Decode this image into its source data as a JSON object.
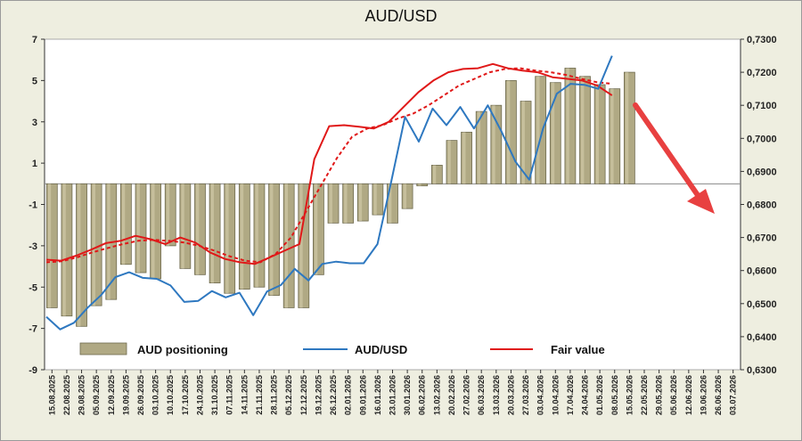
{
  "chart_data": {
    "type": "bar",
    "title": "AUD/USD",
    "y_left": {
      "min": -9,
      "max": 7,
      "ticks": [
        "7",
        "5",
        "3",
        "1",
        "-1",
        "-3",
        "-5",
        "-7",
        "-9"
      ]
    },
    "y_right": {
      "min": 0.63,
      "max": 0.73,
      "ticks": [
        "0,7300",
        "0,7200",
        "0,7100",
        "0,7000",
        "0,6900",
        "0,6800",
        "0,6700",
        "0,6600",
        "0,6500",
        "0,6400",
        "0,6300"
      ]
    },
    "x_labels": [
      "15.08.2025",
      "22.08.2025",
      "29.08.2025",
      "05.09.2025",
      "12.09.2025",
      "19.09.2025",
      "26.09.2025",
      "03.10.2025",
      "10.10.2025",
      "17.10.2025",
      "24.10.2025",
      "31.10.2025",
      "07.11.2025",
      "14.11.2025",
      "21.11.2025",
      "28.11.2025",
      "05.12.2025",
      "12.12.2025",
      "19.12.2025",
      "26.12.2025",
      "02.01.2026",
      "09.01.2026",
      "16.01.2026",
      "23.01.2026",
      "30.01.2026",
      "06.02.2026",
      "13.02.2026",
      "20.02.2026",
      "27.02.2026",
      "06.03.2026",
      "13.03.2026",
      "20.03.2026",
      "27.03.2026",
      "03.04.2026",
      "10.04.2026",
      "17.04.2026",
      "24.04.2026",
      "01.05.2026",
      "08.05.2026",
      "15.05.2026",
      "22.05.2026",
      "29.05.2026",
      "05.06.2026",
      "12.06.2026",
      "19.06.2026",
      "26.06.2026",
      "03.07.2026"
    ],
    "series": [
      {
        "name": "AUD positioning",
        "axis": "left",
        "color": "#b0a984",
        "values": [
          -6.0,
          -6.4,
          -6.9,
          -5.9,
          -5.6,
          -3.9,
          -4.3,
          -4.6,
          -3.0,
          -4.1,
          -4.4,
          -4.8,
          -5.3,
          -5.1,
          -5.0,
          -5.4,
          -6.0,
          -6.0,
          -4.4,
          -1.9,
          -1.9,
          -1.8,
          -1.5,
          -1.9,
          -1.2,
          -0.1,
          0.9,
          2.1,
          2.5,
          3.5,
          3.8,
          5.0,
          4.0,
          5.2,
          4.9,
          5.6,
          5.2,
          4.8,
          4.6,
          5.4
        ]
      },
      {
        "name": "AUD/USD",
        "axis": "right",
        "color": "#2e78c0",
        "values": [
          0.646,
          0.6422,
          0.6442,
          0.6488,
          0.6527,
          0.658,
          0.6595,
          0.6578,
          0.6575,
          0.6555,
          0.6505,
          0.6508,
          0.6538,
          0.6519,
          0.6533,
          0.6465,
          0.6537,
          0.6556,
          0.6605,
          0.657,
          0.662,
          0.6627,
          0.6622,
          0.6622,
          0.668,
          0.687,
          0.7065,
          0.699,
          0.709,
          0.704,
          0.7095,
          0.703,
          0.71,
          0.702,
          0.693,
          0.6875,
          0.703,
          0.7135,
          0.7165,
          0.7162,
          0.715,
          0.725
        ]
      },
      {
        "name": "Fair value",
        "axis": "right",
        "color": "#e01818",
        "values": [
          0.6633,
          0.663,
          0.6645,
          0.6663,
          0.6683,
          0.669,
          0.6705,
          0.6695,
          0.668,
          0.67,
          0.6685,
          0.6655,
          0.6635,
          0.6625,
          0.662,
          0.664,
          0.666,
          0.668,
          0.6937,
          0.7037,
          0.704,
          0.7035,
          0.703,
          0.705,
          0.7095,
          0.714,
          0.7175,
          0.72,
          0.721,
          0.7212,
          0.7225,
          0.7212,
          0.7205,
          0.72,
          0.7185,
          0.718,
          0.7175,
          0.716,
          0.713
        ]
      },
      {
        "name": "",
        "axis": "right",
        "color": "#e01818",
        "style": "dashed",
        "values": [
          0.6625,
          0.6628,
          0.664,
          0.6655,
          0.6668,
          0.668,
          0.669,
          0.6693,
          0.669,
          0.6685,
          0.6675,
          0.666,
          0.6643,
          0.663,
          0.6625,
          0.665,
          0.67,
          0.678,
          0.686,
          0.694,
          0.7005,
          0.703,
          0.704,
          0.706,
          0.7075,
          0.71,
          0.713,
          0.716,
          0.718,
          0.72,
          0.721,
          0.7212,
          0.7205,
          0.72,
          0.7192,
          0.718,
          0.717,
          0.7165
        ]
      }
    ],
    "legend": [
      "AUD positioning",
      "AUD/USD",
      "Fair value"
    ],
    "legend_position": "bottom",
    "annotation": {
      "type": "arrow",
      "direction": "down-right",
      "color": "#e84040"
    },
    "grid": false
  }
}
